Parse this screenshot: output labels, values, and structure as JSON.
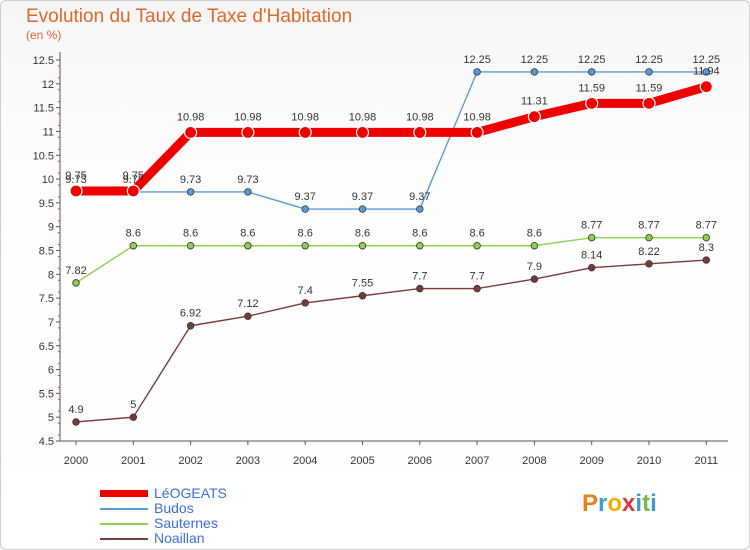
{
  "title": "Evolution du Taux de Taxe d'Habitation",
  "unit_label": "(en %)",
  "brand": {
    "letters": [
      "P",
      "r",
      "o",
      "x",
      "i",
      "t",
      "i"
    ],
    "colors": [
      "#e8801f",
      "#3c9ad6",
      "#f0b000",
      "#d33a3a",
      "#3c9ad6",
      "#7ab648",
      "#3c9ad6"
    ]
  },
  "chart_data": {
    "type": "line",
    "title": "Evolution du Taux de Taxe d'Habitation",
    "ylabel": "(en %)",
    "xlabel": "",
    "x": [
      "2000",
      "2001",
      "2002",
      "2003",
      "2004",
      "2005",
      "2006",
      "2007",
      "2008",
      "2009",
      "2010",
      "2011"
    ],
    "ylim": [
      4.5,
      12.5
    ],
    "yticks": [
      "4.5",
      "5",
      "5.5",
      "6",
      "6.5",
      "7",
      "7.5",
      "8",
      "8.5",
      "9",
      "9.5",
      "10",
      "10.5",
      "11",
      "11.5",
      "12",
      "12.5"
    ],
    "grid": false,
    "legend_position": "bottom-left",
    "series": [
      {
        "name": "LéOGEATS",
        "color": "#ee0000",
        "values": [
          9.75,
          9.75,
          10.98,
          10.98,
          10.98,
          10.98,
          10.98,
          10.98,
          11.31,
          11.59,
          11.59,
          11.94
        ],
        "labels": [
          "9.75",
          "9.75",
          "10.98",
          "10.98",
          "10.98",
          "10.98",
          "10.98",
          "10.98",
          "11.31",
          "11.59",
          "11.59",
          "11.94"
        ]
      },
      {
        "name": "Budos",
        "color": "#5b9bd5",
        "values": [
          9.73,
          9.73,
          9.73,
          9.73,
          9.37,
          9.37,
          9.37,
          12.25,
          12.25,
          12.25,
          12.25,
          12.25
        ],
        "labels": [
          "9.73",
          "9.73",
          "9.73",
          "9.73",
          "9.37",
          "9.37",
          "9.37",
          "12.25",
          "12.25",
          "12.25",
          "12.25",
          "12.25"
        ]
      },
      {
        "name": "Sauternes",
        "color": "#8ed14e",
        "values": [
          7.82,
          8.6,
          8.6,
          8.6,
          8.6,
          8.6,
          8.6,
          8.6,
          8.6,
          8.77,
          8.77,
          8.77
        ],
        "labels": [
          "7.82",
          "8.6",
          "8.6",
          "8.6",
          "8.6",
          "8.6",
          "8.6",
          "8.6",
          "8.6",
          "8.77",
          "8.77",
          "8.77"
        ]
      },
      {
        "name": "Noaillan",
        "color": "#7b3a3a",
        "values": [
          4.9,
          5,
          6.92,
          7.12,
          7.4,
          7.55,
          7.7,
          7.7,
          7.9,
          8.14,
          8.22,
          8.3
        ],
        "labels": [
          "4.9",
          "5",
          "6.92",
          "7.12",
          "7.4",
          "7.55",
          "7.7",
          "7.7",
          "7.9",
          "8.14",
          "8.22",
          "8.3"
        ]
      }
    ]
  }
}
